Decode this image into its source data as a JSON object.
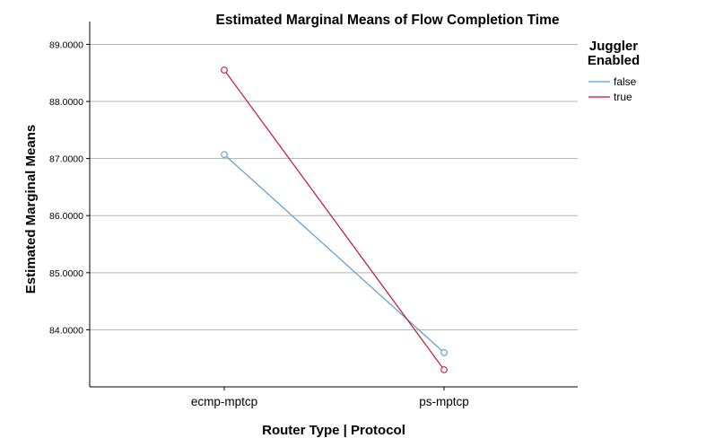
{
  "chart_data": {
    "type": "line",
    "title": "Estimated Marginal Means of Flow Completion Time",
    "xlabel": "Router Type | Protocol",
    "ylabel": "Estimated Marginal Means",
    "categories": [
      "ecmp-mptcp",
      "ps-mptcp"
    ],
    "ylim": [
      83.0,
      89.4
    ],
    "yticks": [
      84.0,
      85.0,
      86.0,
      87.0,
      88.0,
      89.0
    ],
    "ytick_labels": [
      "84.0000",
      "85.0000",
      "86.0000",
      "87.0000",
      "88.0000",
      "89.0000"
    ],
    "grid": true,
    "legend": {
      "title_lines": [
        "Juggler",
        "Enabled"
      ],
      "placement": "top-right"
    },
    "series": [
      {
        "name": "false",
        "values": [
          87.07,
          83.6
        ],
        "color": "#5b9bd5"
      },
      {
        "name": "true",
        "values": [
          88.55,
          83.3
        ],
        "color": "#c0143c"
      }
    ]
  }
}
